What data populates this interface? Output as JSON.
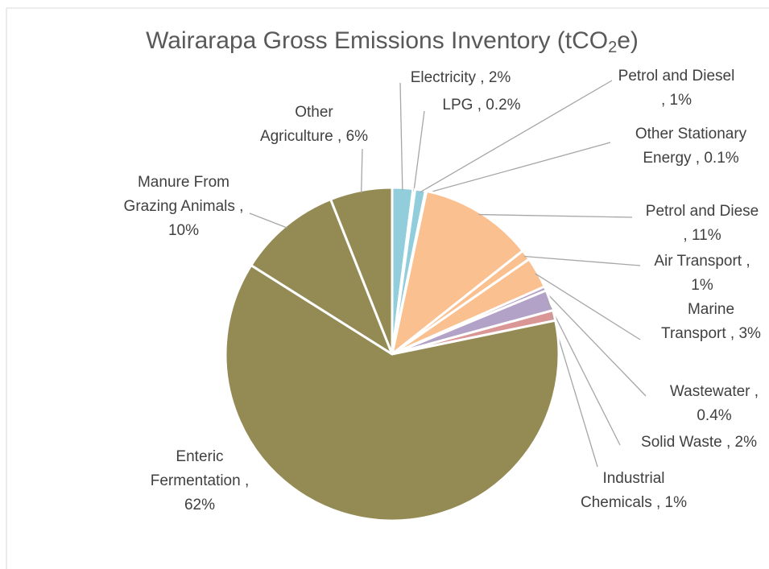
{
  "chart_data": {
    "type": "pie",
    "title": [
      "Wairarapa Gross Emissions Inventory (tCO",
      "2",
      "e)"
    ],
    "values": [
      2,
      0.2,
      1,
      0.1,
      11,
      1,
      3,
      0.4,
      2,
      1,
      62,
      10,
      6
    ],
    "value_labels": [
      [
        "Electricity , 2%"
      ],
      [
        "LPG , 0.2%"
      ],
      [
        "Petrol and Diesel",
        ", 1%"
      ],
      [
        "Other Stationary",
        "Energy , 0.1%"
      ],
      [
        "Petrol and Diese",
        ", 11%"
      ],
      [
        "Air Transport ,",
        "1%"
      ],
      [
        "Marine",
        "Transport , 3%"
      ],
      [
        "Wastewater ,",
        "0.4%"
      ],
      [
        "Solid Waste , 2%"
      ],
      [
        "Industrial",
        "Chemicals , 1%"
      ],
      [
        "Enteric",
        "Fermentation ,",
        "62%"
      ],
      [
        "Manure From",
        "Grazing Animals ,",
        "10%"
      ],
      [
        "Other",
        "Agriculture , 6%"
      ]
    ],
    "colors": [
      "#92cddc",
      "#92cddc",
      "#92cddc",
      "#92cddc",
      "#fac090",
      "#fac090",
      "#fac090",
      "#b3a2c7",
      "#b3a2c7",
      "#d99694",
      "#948a54",
      "#948a54",
      "#948a54"
    ]
  }
}
